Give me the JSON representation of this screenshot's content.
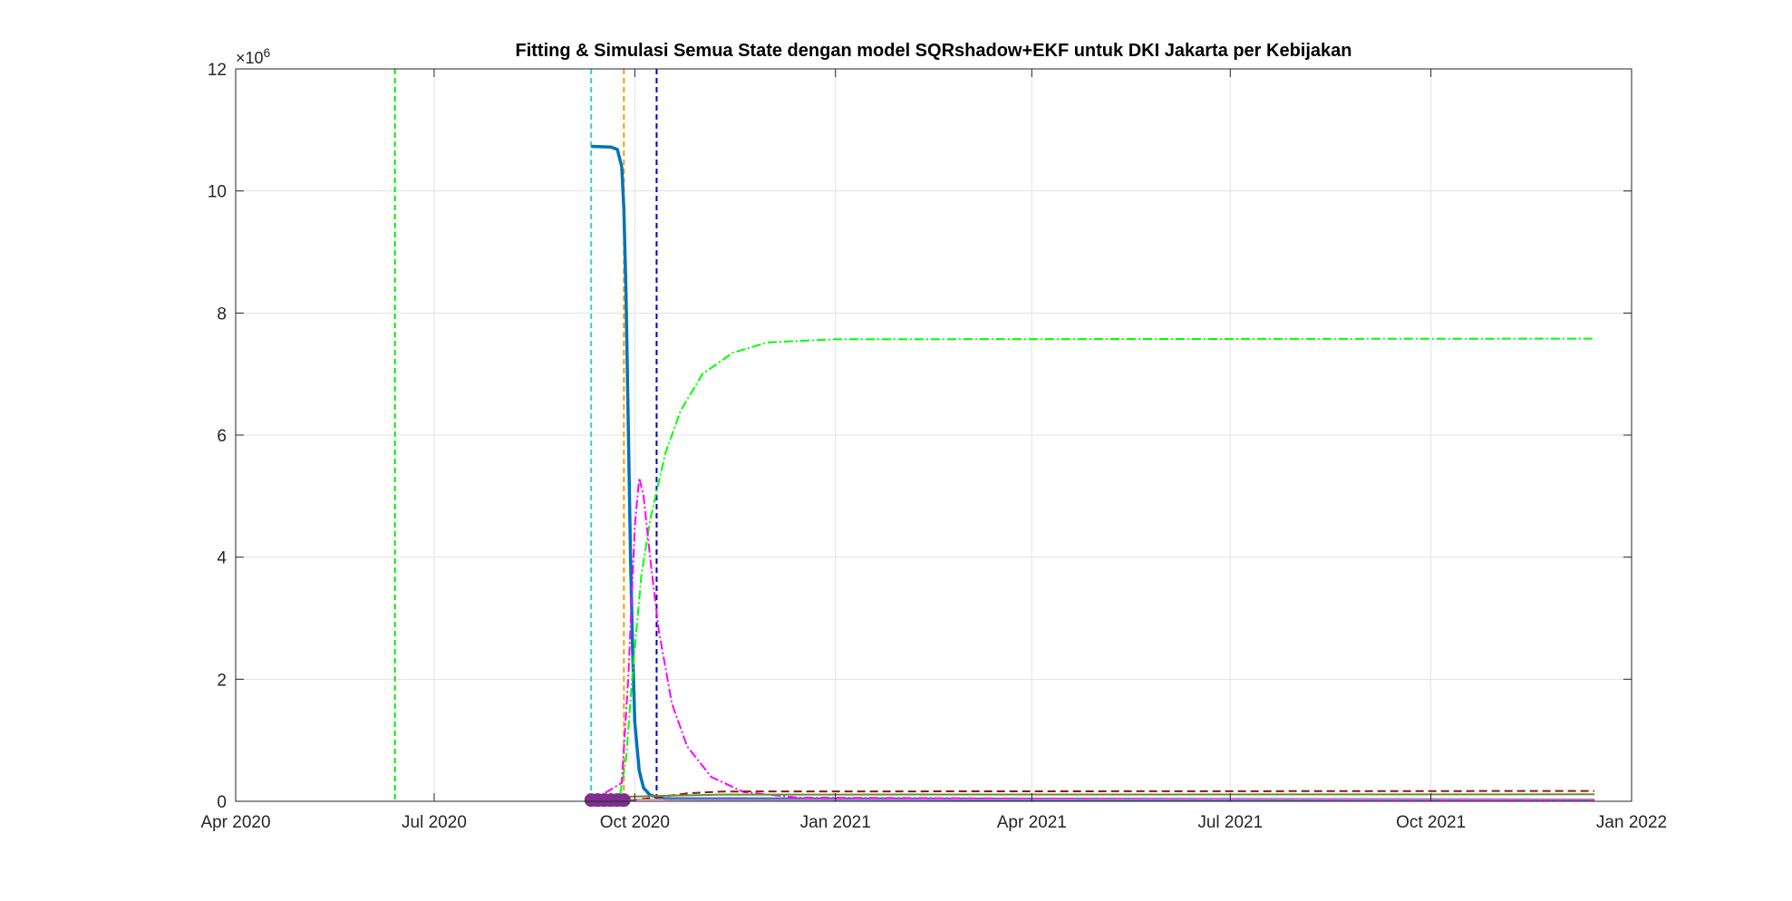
{
  "chart_data": {
    "type": "line",
    "title": "Fitting & Simulasi Semua State dengan model SQRshadow+EKF untuk DKI Jakarta per Kebijakan",
    "xlabel": "",
    "ylabel": "",
    "x_axis_type": "date",
    "xlim": [
      "2020-04-01",
      "2022-01-01"
    ],
    "ylim": [
      0,
      12000000
    ],
    "y_exponent_label": "×10^6",
    "y_ticks": [
      0,
      2,
      4,
      6,
      8,
      10,
      12
    ],
    "x_ticks": [
      {
        "date": "2020-04-01",
        "label": "Apr 2020"
      },
      {
        "date": "2020-07-01",
        "label": "Jul 2020"
      },
      {
        "date": "2020-10-01",
        "label": "Oct 2020"
      },
      {
        "date": "2021-01-01",
        "label": "Jan 2021"
      },
      {
        "date": "2021-04-01",
        "label": "Apr 2021"
      },
      {
        "date": "2021-07-01",
        "label": "Jul 2021"
      },
      {
        "date": "2021-10-01",
        "label": "Oct 2021"
      },
      {
        "date": "2022-01-01",
        "label": "Jan 2022"
      }
    ],
    "grid": true,
    "legend": "none",
    "vertical_markers": [
      {
        "date": "2020-06-13",
        "color": "#00ee00"
      },
      {
        "date": "2020-09-11",
        "color": "#33ccdd"
      },
      {
        "date": "2020-09-26",
        "color": "#ff9900"
      },
      {
        "date": "2020-10-11",
        "color": "#0000cc"
      }
    ],
    "series": [
      {
        "color": "#0072bd",
        "style": "solid",
        "width": 3.5,
        "points": [
          [
            "2020-09-11",
            10730000
          ],
          [
            "2020-09-20",
            10720000
          ],
          [
            "2020-09-23",
            10680000
          ],
          [
            "2020-09-25",
            10400000
          ],
          [
            "2020-09-26",
            9700000
          ],
          [
            "2020-09-27",
            8300000
          ],
          [
            "2020-09-28",
            6200000
          ],
          [
            "2020-09-29",
            4100000
          ],
          [
            "2020-09-30",
            2500000
          ],
          [
            "2020-10-01",
            1300000
          ],
          [
            "2020-10-03",
            500000
          ],
          [
            "2020-10-05",
            220000
          ],
          [
            "2020-10-08",
            100000
          ],
          [
            "2020-10-15",
            40000
          ],
          [
            "2021-12-15",
            20000
          ]
        ]
      },
      {
        "color": "#00ff00",
        "style": "dashdot",
        "width": 2,
        "points": [
          [
            "2020-09-11",
            0
          ],
          [
            "2020-09-24",
            50000
          ],
          [
            "2020-09-27",
            700000
          ],
          [
            "2020-09-30",
            2100000
          ],
          [
            "2020-10-04",
            3700000
          ],
          [
            "2020-10-08",
            4600000
          ],
          [
            "2020-10-15",
            5700000
          ],
          [
            "2020-10-22",
            6400000
          ],
          [
            "2020-11-01",
            7000000
          ],
          [
            "2020-11-15",
            7350000
          ],
          [
            "2020-12-01",
            7520000
          ],
          [
            "2021-01-01",
            7570000
          ],
          [
            "2021-12-15",
            7580000
          ]
        ]
      },
      {
        "color": "#ff00ff",
        "style": "dashdot",
        "width": 2,
        "points": [
          [
            "2020-09-11",
            0
          ],
          [
            "2020-09-25",
            300000
          ],
          [
            "2020-09-28",
            2000000
          ],
          [
            "2020-10-01",
            4500000
          ],
          [
            "2020-10-03",
            5300000
          ],
          [
            "2020-10-05",
            5000000
          ],
          [
            "2020-10-08",
            4000000
          ],
          [
            "2020-10-12",
            2800000
          ],
          [
            "2020-10-18",
            1600000
          ],
          [
            "2020-10-25",
            900000
          ],
          [
            "2020-11-05",
            400000
          ],
          [
            "2020-11-20",
            150000
          ],
          [
            "2020-12-15",
            60000
          ],
          [
            "2021-12-15",
            10000
          ]
        ]
      },
      {
        "color": "#8b1a1a",
        "style": "dashed",
        "width": 2,
        "points": [
          [
            "2020-09-11",
            0
          ],
          [
            "2020-09-28",
            15000
          ],
          [
            "2020-10-10",
            60000
          ],
          [
            "2020-10-25",
            130000
          ],
          [
            "2020-11-10",
            160000
          ],
          [
            "2021-12-15",
            170000
          ]
        ]
      },
      {
        "color": "#6b8e23",
        "style": "solid",
        "width": 2,
        "points": [
          [
            "2020-09-11",
            60000
          ],
          [
            "2020-10-15",
            90000
          ],
          [
            "2020-11-10",
            110000
          ],
          [
            "2021-12-15",
            115000
          ]
        ]
      },
      {
        "color": "#e377c2",
        "style": "solid",
        "width": 1.5,
        "points": [
          [
            "2020-09-11",
            30000
          ],
          [
            "2021-12-15",
            30000
          ]
        ]
      },
      {
        "color": "#7e2f8e",
        "style": "markers",
        "width": 2,
        "points": [
          [
            "2020-09-11",
            20000
          ],
          [
            "2020-09-14",
            20000
          ],
          [
            "2020-09-17",
            20000
          ],
          [
            "2020-09-20",
            20000
          ],
          [
            "2020-09-23",
            20000
          ],
          [
            "2020-09-26",
            20000
          ]
        ]
      }
    ]
  }
}
